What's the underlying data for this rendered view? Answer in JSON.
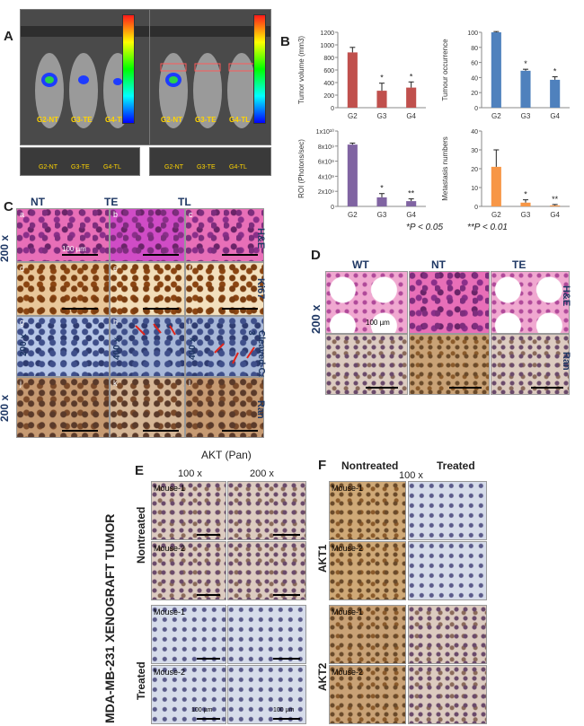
{
  "panel_A": {
    "letter": "A",
    "mouse_labels": [
      "G2-NT",
      "G3-TE",
      "G4-TL"
    ],
    "mouse_labels_bottom": [
      "G2-NT",
      "G3-TE",
      "G4-TL"
    ]
  },
  "panel_B": {
    "letter": "B",
    "footnote_1": "*P < 0.05",
    "footnote_2": "**P < 0.01"
  },
  "chart_data": [
    {
      "type": "bar",
      "ylabel": "Tumor volume (mm3)",
      "categories": [
        "G2",
        "G3",
        "G4"
      ],
      "values": [
        880,
        270,
        320
      ],
      "errors": [
        80,
        120,
        90
      ],
      "significance": [
        "",
        "*",
        "*"
      ],
      "ylim": [
        0,
        1200
      ],
      "yticks": [
        "0",
        "200",
        "400",
        "600",
        "800",
        "1000",
        "1200"
      ],
      "color": "#c0504d"
    },
    {
      "type": "bar",
      "ylabel": "Tumour occurrence",
      "categories": [
        "G2",
        "G3",
        "G4"
      ],
      "values": [
        100,
        49,
        37
      ],
      "errors": [
        1,
        2,
        4
      ],
      "significance": [
        "",
        "*",
        "*"
      ],
      "ylim": [
        0,
        100
      ],
      "yticks": [
        "0",
        "20",
        "40",
        "60",
        "80",
        "100"
      ],
      "color": "#4f81bd"
    },
    {
      "type": "bar",
      "ylabel": "ROI (Photons/sec)",
      "categories": [
        "G2",
        "G3",
        "G4"
      ],
      "values": [
        8.2,
        1.2,
        0.7
      ],
      "errors": [
        0.2,
        0.5,
        0.3
      ],
      "significance": [
        "",
        "*",
        "**"
      ],
      "ylim": [
        0,
        10
      ],
      "yticks": [
        "0",
        "2x10⁹",
        "4x10⁹",
        "6x10⁹",
        "8x10⁹",
        "1x10¹⁰"
      ],
      "color": "#8064a2"
    },
    {
      "type": "bar",
      "ylabel": "Metastasis numbers",
      "categories": [
        "G2",
        "G3",
        "G4"
      ],
      "values": [
        21,
        2,
        0.5
      ],
      "errors": [
        9,
        1.5,
        0.5
      ],
      "significance": [
        "",
        "*",
        "**"
      ],
      "ylim": [
        0,
        40
      ],
      "yticks": [
        "0",
        "10",
        "20",
        "30",
        "40"
      ],
      "color": "#f79646"
    }
  ],
  "panel_C": {
    "letter": "C",
    "columns": [
      "NT",
      "TE",
      "TL"
    ],
    "row_labels": [
      "H&E",
      "Ki67",
      "Cleaved-Caspase-3",
      "Ran"
    ],
    "magnification_left": "200 x",
    "magnification_left_bottom": "200 x",
    "sub_letters": [
      "a",
      "b",
      "c",
      "d",
      "e",
      "f",
      "g",
      "h",
      "i",
      "j",
      "k",
      "l"
    ],
    "inset_mag_g": "200 x",
    "inset_mag_h": "400 x",
    "inset_mag_i": "400 x",
    "scale_label": "100 µm"
  },
  "panel_D": {
    "letter": "D",
    "columns": [
      "WT",
      "NT",
      "TE"
    ],
    "row_labels": [
      "H&E",
      "Ran"
    ],
    "magnification": "200 x",
    "scale_label": "100 µm"
  },
  "panel_E": {
    "letter": "E",
    "title": "AKT (Pan)",
    "col_100": "100 x",
    "col_200": "200 x",
    "group_nontreated": "Nontreated",
    "group_treated": "Treated",
    "mouse_1": "Mouse-1",
    "mouse_2": "Mouse-2",
    "scale_label": "100 µm"
  },
  "panel_F": {
    "letter": "F",
    "col_nontreated": "Nontreated",
    "col_100": "100 x",
    "col_treated": "Treated",
    "row_akt1": "AKT1",
    "row_akt2": "AKT2",
    "mouse_1": "Mouse-1",
    "mouse_2": "Mouse-2"
  },
  "side_label": "MDA-MB-231 XENOGRAFT TUMOR"
}
